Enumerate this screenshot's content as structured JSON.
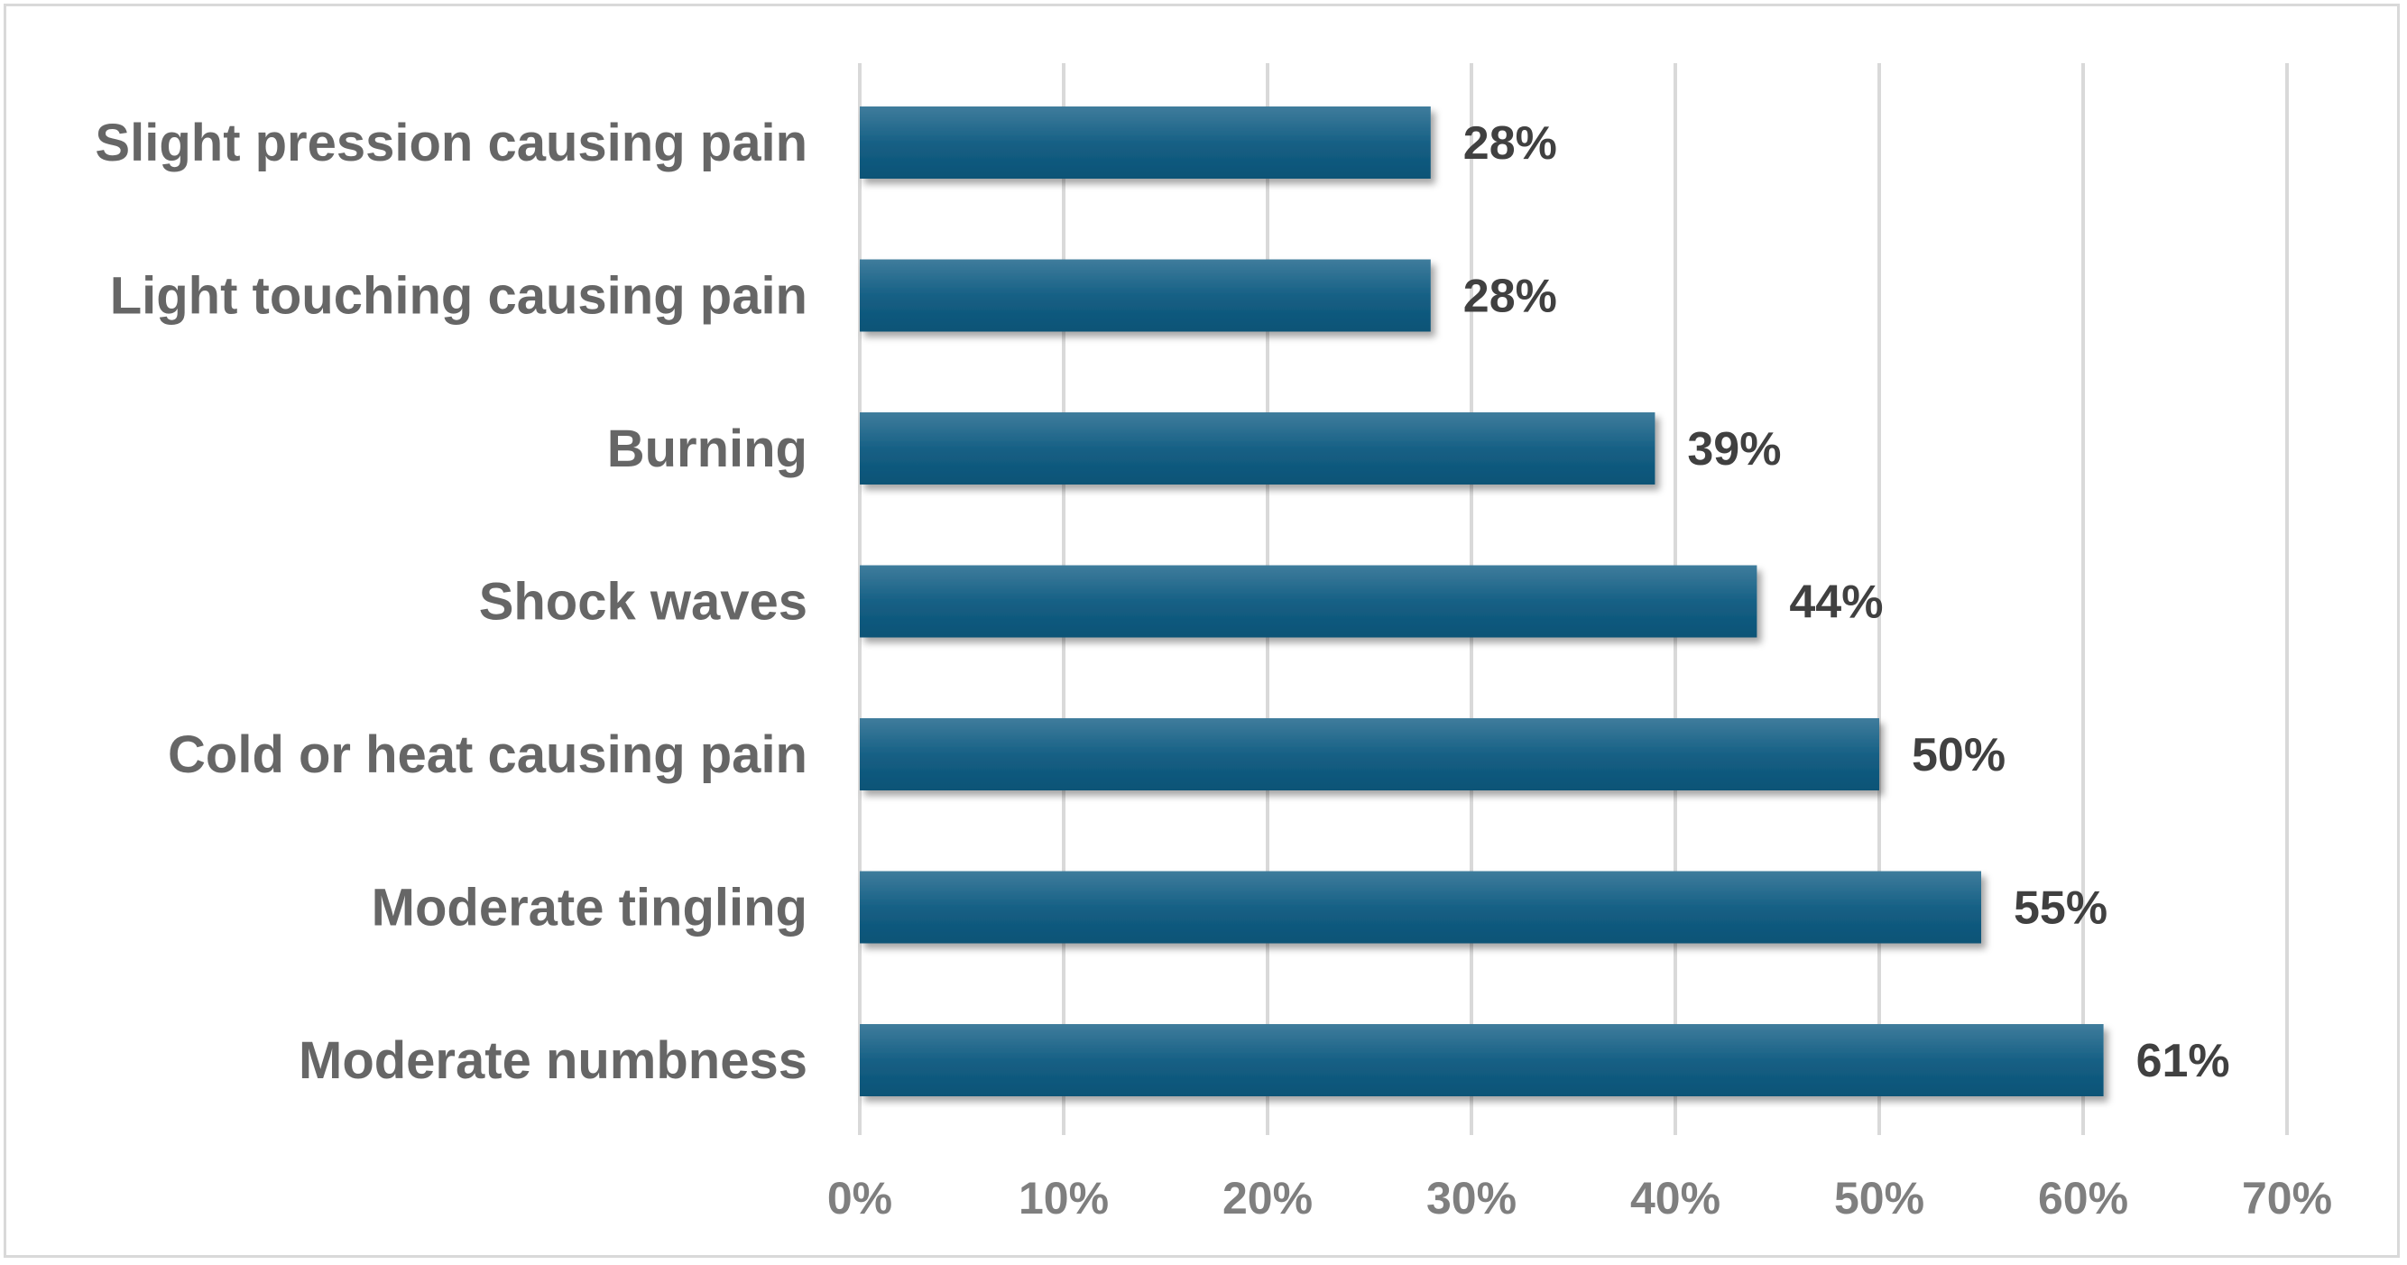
{
  "chart_data": {
    "type": "bar",
    "orientation": "horizontal",
    "categories": [
      "Slight pression causing pain",
      "Light touching causing pain",
      "Burning",
      "Shock waves",
      "Cold or heat causing pain",
      "Moderate tingling",
      "Moderate numbness"
    ],
    "values": [
      28,
      28,
      39,
      44,
      50,
      55,
      61
    ],
    "data_labels": [
      "28%",
      "28%",
      "39%",
      "44%",
      "50%",
      "55%",
      "61%"
    ],
    "x_ticks": [
      "0%",
      "10%",
      "20%",
      "30%",
      "40%",
      "50%",
      "60%",
      "70%"
    ],
    "xlim": [
      0,
      70
    ],
    "grid": "vertical",
    "legend": "none",
    "bar_color": "#145e82",
    "title": "",
    "xlabel": "",
    "ylabel": ""
  }
}
